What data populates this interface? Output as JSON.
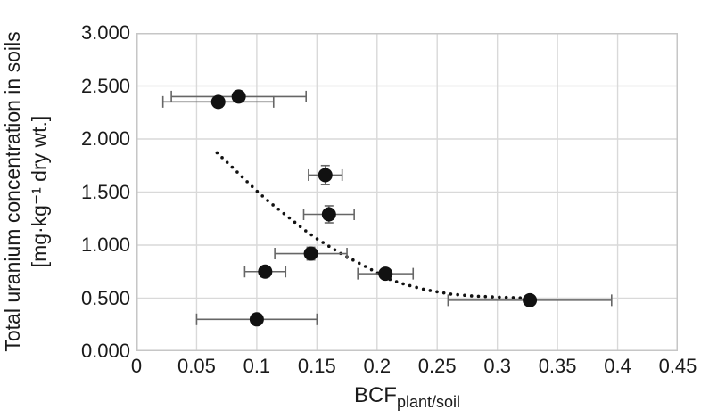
{
  "chart_data": {
    "type": "scatter",
    "title": "",
    "grid": true,
    "legend": "none",
    "x_axis": {
      "label_main": "BCF",
      "label_subscript": "plant/soil",
      "min": 0,
      "max": 0.45,
      "tick_values": [
        0,
        0.05,
        0.1,
        0.15,
        0.2,
        0.25,
        0.3,
        0.35,
        0.4,
        0.45
      ],
      "tick_labels": [
        "0",
        "0.05",
        "0.1",
        "0.15",
        "0.2",
        "0.25",
        "0.3",
        "0.35",
        "0.4",
        "0.45"
      ]
    },
    "y_axis": {
      "label_line1": "Total uranium concentration in soils",
      "label_line2": "[mg·kg⁻¹ dry wt.]",
      "min": 0,
      "max": 3,
      "tick_values": [
        0,
        0.5,
        1,
        1.5,
        2,
        2.5,
        3
      ],
      "tick_labels": [
        "0.000",
        "0.500",
        "1.000",
        "1.500",
        "2.000",
        "2.500",
        "3.000"
      ]
    },
    "series": [
      {
        "name": "soil-uranium-vs-bcf",
        "marker": "filled-circle",
        "points": [
          {
            "x": 0.068,
            "y": 2.35,
            "xerr": 0.046,
            "yerr": 0.05
          },
          {
            "x": 0.085,
            "y": 2.4,
            "xerr": 0.056,
            "yerr": 0.05
          },
          {
            "x": 0.1,
            "y": 0.3,
            "xerr": 0.05,
            "yerr": 0.03
          },
          {
            "x": 0.107,
            "y": 0.75,
            "xerr": 0.017,
            "yerr": 0.05
          },
          {
            "x": 0.145,
            "y": 0.92,
            "xerr": 0.03,
            "yerr": 0.06
          },
          {
            "x": 0.157,
            "y": 1.66,
            "xerr": 0.014,
            "yerr": 0.09
          },
          {
            "x": 0.16,
            "y": 1.29,
            "xerr": 0.021,
            "yerr": 0.08
          },
          {
            "x": 0.207,
            "y": 0.73,
            "xerr": 0.023,
            "yerr": 0.04
          },
          {
            "x": 0.327,
            "y": 0.48,
            "xerr": 0.068,
            "yerr": 0.03
          }
        ]
      }
    ],
    "trendline": {
      "style": "dotted",
      "points": [
        [
          0.067,
          1.87
        ],
        [
          0.08,
          1.73
        ],
        [
          0.09,
          1.62
        ],
        [
          0.1,
          1.51
        ],
        [
          0.11,
          1.41
        ],
        [
          0.12,
          1.32
        ],
        [
          0.13,
          1.23
        ],
        [
          0.14,
          1.14
        ],
        [
          0.15,
          1.06
        ],
        [
          0.16,
          0.99
        ],
        [
          0.17,
          0.92
        ],
        [
          0.18,
          0.86
        ],
        [
          0.19,
          0.8
        ],
        [
          0.2,
          0.74
        ],
        [
          0.21,
          0.68
        ],
        [
          0.22,
          0.64
        ],
        [
          0.23,
          0.61
        ],
        [
          0.24,
          0.58
        ],
        [
          0.25,
          0.56
        ],
        [
          0.26,
          0.54
        ],
        [
          0.28,
          0.52
        ],
        [
          0.3,
          0.51
        ],
        [
          0.327,
          0.5
        ]
      ]
    },
    "colors": {
      "marker": "#111111",
      "trendline": "#111111",
      "error_bar": "#666666",
      "gridline": "#d9d9d9",
      "plot_border": "#c6c6c6",
      "text": "#1a1a1a",
      "background": "#ffffff"
    }
  }
}
